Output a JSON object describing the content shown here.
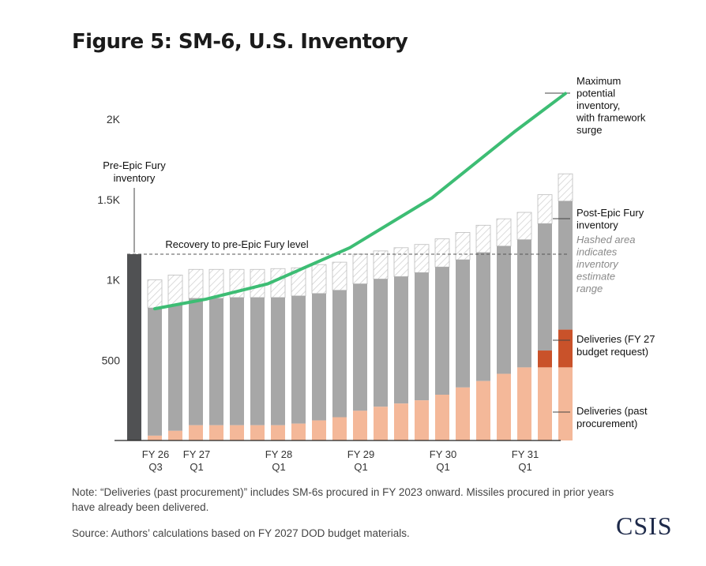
{
  "title": "Figure 5: SM-6, U.S. Inventory",
  "note": "Note: “Deliveries (past procurement)” includes SM-6s procured in FY 2023 onward. Missiles procured in prior years have already been delivered.",
  "source": "Source: Authors’ calculations based on FY 2027 DOD budget materials.",
  "logo": "CSIS",
  "colors": {
    "pre_epic_fury": "#505153",
    "post_epic_fury": "#a7a7a7",
    "hashed_range": "#cfcfcf",
    "deliveries_past": "#f4b899",
    "deliveries_fy27": "#c9522a",
    "max_potential": "#3dbd74",
    "axis": "#222222",
    "dashed_line": "#555555"
  },
  "chart_data": {
    "type": "bar",
    "y_ticks": [
      {
        "value": 500,
        "label": "500"
      },
      {
        "value": 1000,
        "label": "1K"
      },
      {
        "value": 1500,
        "label": "1.5K"
      },
      {
        "value": 2000,
        "label": "2K"
      }
    ],
    "ylim": [
      0,
      2200
    ],
    "x_labels": [
      {
        "index": 0,
        "line1": "FY 26",
        "line2": "Q3"
      },
      {
        "index": 2,
        "line1": "FY 27",
        "line2": "Q1"
      },
      {
        "index": 6,
        "line1": "FY 28",
        "line2": "Q1"
      },
      {
        "index": 10,
        "line1": "FY 29",
        "line2": "Q1"
      },
      {
        "index": 14,
        "line1": "FY 30",
        "line2": "Q1"
      },
      {
        "index": 18,
        "line1": "FY 31",
        "line2": "Q1"
      }
    ],
    "pre_epic_fury_inventory": 1160,
    "recovery_level": 1160,
    "series": [
      {
        "name": "Deliveries (past procurement)",
        "values": [
          30,
          60,
          95,
          95,
          95,
          95,
          95,
          105,
          125,
          145,
          185,
          210,
          230,
          250,
          285,
          330,
          370,
          415,
          455,
          455,
          455
        ]
      },
      {
        "name": "Deliveries (FY 27 budget request)",
        "values": [
          0,
          0,
          0,
          0,
          0,
          0,
          0,
          0,
          0,
          0,
          0,
          0,
          0,
          0,
          0,
          0,
          0,
          0,
          0,
          105,
          235
        ]
      },
      {
        "name": "Post-Epic Fury inventory",
        "values": [
          825,
          845,
          885,
          885,
          890,
          890,
          890,
          900,
          915,
          935,
          975,
          1005,
          1020,
          1045,
          1080,
          1125,
          1170,
          1210,
          1250,
          1350,
          1490
        ]
      },
      {
        "name": "Hashed area indicates inventory estimate range",
        "values": [
          1000,
          1030,
          1065,
          1065,
          1065,
          1065,
          1070,
          1075,
          1095,
          1110,
          1160,
          1180,
          1200,
          1220,
          1255,
          1295,
          1340,
          1380,
          1420,
          1530,
          1660
        ]
      },
      {
        "name": "Maximum potential inventory, with framework surge",
        "points": [
          {
            "index": 0,
            "value": 820
          },
          {
            "index": 2.5,
            "value": 880
          },
          {
            "index": 5.5,
            "value": 975
          },
          {
            "index": 9.5,
            "value": 1200
          },
          {
            "index": 13.5,
            "value": 1510
          },
          {
            "index": 17.5,
            "value": 1920
          },
          {
            "index": 20,
            "value": 2160
          }
        ]
      }
    ],
    "annotations": {
      "pre_epic_fury": "Pre-Epic Fury inventory",
      "recovery": "Recovery to pre-Epic Fury level",
      "max_potential": "Maximum potential inventory, with framework surge",
      "post_epic_fury": "Post-Epic Fury inventory",
      "hashed": "Hashed area indicates inventory estimate range",
      "deliveries_fy27": "Deliveries (FY 27 budget request)",
      "deliveries_past": "Deliveries (past procurement)"
    }
  }
}
